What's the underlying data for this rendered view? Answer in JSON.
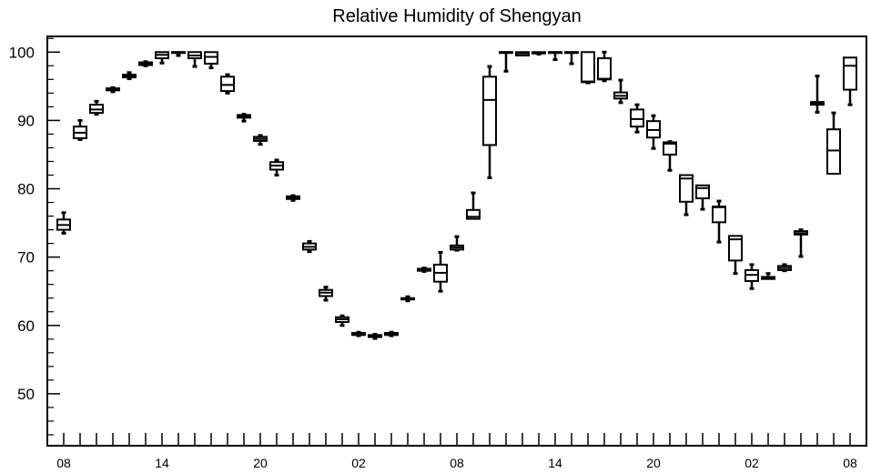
{
  "chart_data": {
    "type": "box",
    "title": "Relative Humidity of Shengyan",
    "ylim": [
      42.4,
      102.3
    ],
    "yticks": [
      50,
      60,
      70,
      80,
      90,
      100
    ],
    "xtick_labels": [
      "08",
      "14",
      "20",
      "02",
      "08",
      "14",
      "20",
      "02",
      "08"
    ],
    "grid": false,
    "color": "#000000",
    "boxes": [
      {
        "hour": 8,
        "min": 73.5,
        "q1": 74.0,
        "median": 74.7,
        "q3": 75.5,
        "max": 76.5
      },
      {
        "hour": 9,
        "min": 87.2,
        "q1": 87.4,
        "median": 88.2,
        "q3": 89.1,
        "max": 90.0
      },
      {
        "hour": 10,
        "min": 90.9,
        "q1": 91.1,
        "median": 91.6,
        "q3": 92.3,
        "max": 92.8
      },
      {
        "hour": 11,
        "min": 94.2,
        "q1": 94.4,
        "median": 94.6,
        "q3": 94.7,
        "max": 94.8
      },
      {
        "hour": 12,
        "min": 96.1,
        "q1": 96.3,
        "median": 96.5,
        "q3": 96.7,
        "max": 97.0
      },
      {
        "hour": 13,
        "min": 98.0,
        "q1": 98.1,
        "median": 98.3,
        "q3": 98.5,
        "max": 98.6
      },
      {
        "hour": 14,
        "min": 98.4,
        "q1": 99.1,
        "median": 99.6,
        "q3": 100.0,
        "max": 100.0
      },
      {
        "hour": 15,
        "min": 99.5,
        "q1": 99.9,
        "median": 100.0,
        "q3": 100.0,
        "max": 100.0
      },
      {
        "hour": 16,
        "min": 97.9,
        "q1": 99.1,
        "median": 99.5,
        "q3": 100.0,
        "max": 100.0
      },
      {
        "hour": 17,
        "min": 97.7,
        "q1": 98.3,
        "median": 99.3,
        "q3": 100.0,
        "max": 100.0
      },
      {
        "hour": 18,
        "min": 94.0,
        "q1": 94.3,
        "median": 95.2,
        "q3": 96.4,
        "max": 96.7
      },
      {
        "hour": 19,
        "min": 89.9,
        "q1": 90.4,
        "median": 90.6,
        "q3": 90.8,
        "max": 90.9
      },
      {
        "hour": 20,
        "min": 86.5,
        "q1": 87.0,
        "median": 87.3,
        "q3": 87.6,
        "max": 87.8
      },
      {
        "hour": 21,
        "min": 82.0,
        "q1": 82.8,
        "median": 83.4,
        "q3": 83.9,
        "max": 84.2
      },
      {
        "hour": 22,
        "min": 78.3,
        "q1": 78.5,
        "median": 78.7,
        "q3": 78.9,
        "max": 79.0
      },
      {
        "hour": 23,
        "min": 70.8,
        "q1": 71.1,
        "median": 71.5,
        "q3": 72.0,
        "max": 72.3
      },
      {
        "hour": 0,
        "min": 63.7,
        "q1": 64.3,
        "median": 64.8,
        "q3": 65.2,
        "max": 65.6
      },
      {
        "hour": 1,
        "min": 60.0,
        "q1": 60.5,
        "median": 60.9,
        "q3": 61.2,
        "max": 61.4
      },
      {
        "hour": 2,
        "min": 58.5,
        "q1": 58.6,
        "median": 58.8,
        "q3": 58.9,
        "max": 59.0
      },
      {
        "hour": 3,
        "min": 58.1,
        "q1": 58.3,
        "median": 58.4,
        "q3": 58.6,
        "max": 58.7
      },
      {
        "hour": 4,
        "min": 58.5,
        "q1": 58.6,
        "median": 58.7,
        "q3": 58.9,
        "max": 59.0
      },
      {
        "hour": 5,
        "min": 63.6,
        "q1": 63.8,
        "median": 63.9,
        "q3": 64.0,
        "max": 64.2
      },
      {
        "hour": 6,
        "min": 67.9,
        "q1": 68.0,
        "median": 68.1,
        "q3": 68.3,
        "max": 68.4
      },
      {
        "hour": 7,
        "min": 65.0,
        "q1": 66.4,
        "median": 67.7,
        "q3": 68.9,
        "max": 70.7
      },
      {
        "hour": 8,
        "min": 71.0,
        "q1": 71.1,
        "median": 71.4,
        "q3": 71.7,
        "max": 73.0
      },
      {
        "hour": 9,
        "min": 75.6,
        "q1": 75.6,
        "median": 75.9,
        "q3": 76.9,
        "max": 79.4
      },
      {
        "hour": 10,
        "min": 81.6,
        "q1": 86.4,
        "median": 93.0,
        "q3": 96.4,
        "max": 97.9
      },
      {
        "hour": 11,
        "min": 97.2,
        "q1": 100.0,
        "median": 100.0,
        "q3": 100.0,
        "max": 100.0
      },
      {
        "hour": 12,
        "min": 99.5,
        "q1": 99.5,
        "median": 99.8,
        "q3": 100.0,
        "max": 100.0
      },
      {
        "hour": 13,
        "min": 99.7,
        "q1": 99.8,
        "median": 99.9,
        "q3": 100.0,
        "max": 100.0
      },
      {
        "hour": 14,
        "min": 98.9,
        "q1": 100.0,
        "median": 100.0,
        "q3": 100.0,
        "max": 100.0
      },
      {
        "hour": 15,
        "min": 98.3,
        "q1": 100.0,
        "median": 100.0,
        "q3": 100.0,
        "max": 100.0
      },
      {
        "hour": 16,
        "min": 95.5,
        "q1": 95.6,
        "median": 95.7,
        "q3": 100.0,
        "max": 100.0
      },
      {
        "hour": 17,
        "min": 95.8,
        "q1": 96.0,
        "median": 96.1,
        "q3": 99.1,
        "max": 100.0
      },
      {
        "hour": 18,
        "min": 92.6,
        "q1": 93.2,
        "median": 93.6,
        "q3": 94.1,
        "max": 95.9
      },
      {
        "hour": 19,
        "min": 88.3,
        "q1": 89.1,
        "median": 90.2,
        "q3": 91.6,
        "max": 92.3
      },
      {
        "hour": 20,
        "min": 85.9,
        "q1": 87.5,
        "median": 88.6,
        "q3": 89.9,
        "max": 90.7
      },
      {
        "hour": 21,
        "min": 82.7,
        "q1": 85.0,
        "median": 86.6,
        "q3": 86.8,
        "max": 86.9
      },
      {
        "hour": 22,
        "min": 76.2,
        "q1": 78.1,
        "median": 81.5,
        "q3": 82.0,
        "max": 82.0
      },
      {
        "hour": 23,
        "min": 77.0,
        "q1": 78.6,
        "median": 80.1,
        "q3": 80.5,
        "max": 80.5
      },
      {
        "hour": 0,
        "min": 72.2,
        "q1": 75.1,
        "median": 77.3,
        "q3": 77.4,
        "max": 78.2
      },
      {
        "hour": 1,
        "min": 67.6,
        "q1": 69.5,
        "median": 72.6,
        "q3": 73.1,
        "max": 73.1
      },
      {
        "hour": 2,
        "min": 65.4,
        "q1": 66.5,
        "median": 67.4,
        "q3": 68.1,
        "max": 68.9
      },
      {
        "hour": 3,
        "min": 66.8,
        "q1": 66.8,
        "median": 67.0,
        "q3": 67.1,
        "max": 67.6
      },
      {
        "hour": 4,
        "min": 68.0,
        "q1": 68.1,
        "median": 68.4,
        "q3": 68.7,
        "max": 68.9
      },
      {
        "hour": 5,
        "min": 70.1,
        "q1": 73.3,
        "median": 73.5,
        "q3": 73.8,
        "max": 74.0
      },
      {
        "hour": 6,
        "min": 91.2,
        "q1": 92.3,
        "median": 92.5,
        "q3": 92.7,
        "max": 96.5
      },
      {
        "hour": 7,
        "min": 82.2,
        "q1": 82.2,
        "median": 85.6,
        "q3": 88.7,
        "max": 91.1
      },
      {
        "hour": 8,
        "min": 92.3,
        "q1": 94.5,
        "median": 98.0,
        "q3": 99.2,
        "max": 99.2
      }
    ]
  }
}
